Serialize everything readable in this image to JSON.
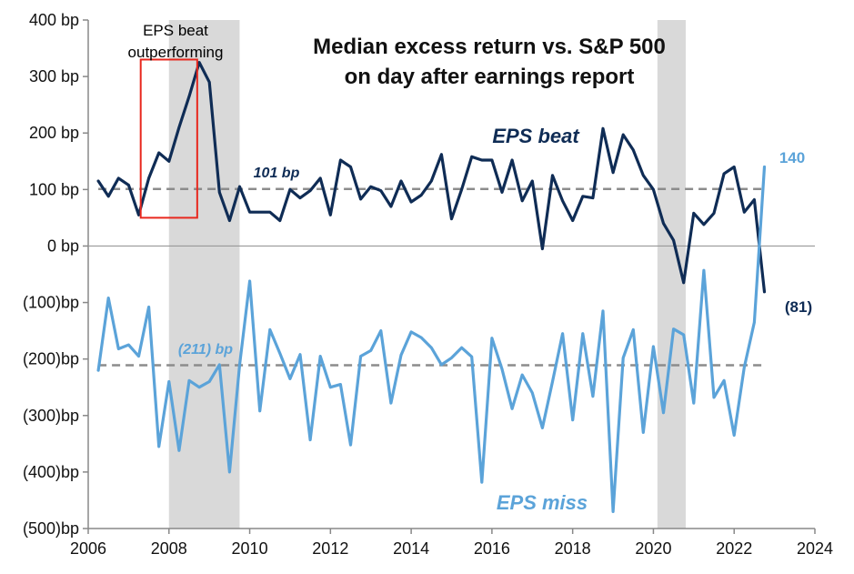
{
  "chart_data": {
    "type": "line",
    "title_line1": "Median excess return vs. S&P 500",
    "title_line2": "on day after earnings report",
    "xlabel": "",
    "ylabel": "",
    "xlim": [
      2006,
      2024
    ],
    "ylim": [
      -500,
      400
    ],
    "x_ticks": [
      2006,
      2008,
      2010,
      2012,
      2014,
      2016,
      2018,
      2020,
      2022,
      2024
    ],
    "x_tick_labels": [
      "2006",
      "2008",
      "2010",
      "2012",
      "2014",
      "2016",
      "2018",
      "2020",
      "2022",
      "2024"
    ],
    "y_ticks": [
      400,
      300,
      200,
      100,
      0,
      -100,
      -200,
      -300,
      -400,
      -500
    ],
    "y_tick_labels": [
      "400 bp",
      "300 bp",
      "200 bp",
      "100 bp",
      "0 bp",
      "(100)bp",
      "(200)bp",
      "(300)bp",
      "(400)bp",
      "(500)bp"
    ],
    "recessions": [
      [
        2008.0,
        2009.75
      ],
      [
        2020.1,
        2020.8
      ]
    ],
    "averages": [
      {
        "series": "EPS beat",
        "value": 101,
        "label": "101 bp",
        "color": "#0f2c55"
      },
      {
        "series": "EPS miss",
        "value": -211,
        "label": "(211) bp",
        "color": "#5ba3d9"
      }
    ],
    "highlight": {
      "label_line1": "EPS beat",
      "label_line2": "outperforming",
      "x_range": [
        2007.3,
        2008.7
      ],
      "y_range": [
        50,
        330
      ],
      "color": "#e8281e"
    },
    "series": [
      {
        "name": "EPS beat",
        "label": "EPS beat",
        "color": "#0f2c55",
        "end_label": "(81)",
        "x": [
          2006.25,
          2006.5,
          2006.75,
          2007.0,
          2007.25,
          2007.5,
          2007.75,
          2008.0,
          2008.25,
          2008.5,
          2008.75,
          2009.0,
          2009.25,
          2009.5,
          2009.75,
          2010.0,
          2010.25,
          2010.5,
          2010.75,
          2011.0,
          2011.25,
          2011.5,
          2011.75,
          2012.0,
          2012.25,
          2012.5,
          2012.75,
          2013.0,
          2013.25,
          2013.5,
          2013.75,
          2014.0,
          2014.25,
          2014.5,
          2014.75,
          2015.0,
          2015.25,
          2015.5,
          2015.75,
          2016.0,
          2016.25,
          2016.5,
          2016.75,
          2017.0,
          2017.25,
          2017.5,
          2017.75,
          2018.0,
          2018.25,
          2018.5,
          2018.75,
          2019.0,
          2019.25,
          2019.5,
          2019.75,
          2020.0,
          2020.25,
          2020.5,
          2020.75,
          2021.0,
          2021.25,
          2021.5,
          2021.75,
          2022.0,
          2022.25,
          2022.5,
          2022.75
        ],
        "values": [
          115,
          88,
          120,
          108,
          55,
          120,
          165,
          150,
          210,
          265,
          325,
          290,
          95,
          45,
          105,
          60,
          60,
          60,
          45,
          100,
          85,
          98,
          120,
          55,
          152,
          140,
          83,
          105,
          98,
          70,
          115,
          78,
          90,
          115,
          162,
          48,
          100,
          158,
          152,
          152,
          95,
          152,
          80,
          115,
          -5,
          125,
          80,
          45,
          88,
          85,
          208,
          130,
          197,
          170,
          125,
          100,
          40,
          10,
          -65,
          58,
          38,
          58,
          128,
          140,
          60,
          82,
          -81
        ]
      },
      {
        "name": "EPS miss",
        "label": "EPS miss",
        "color": "#5ba3d9",
        "end_label": "140",
        "x": [
          2006.25,
          2006.5,
          2006.75,
          2007.0,
          2007.25,
          2007.5,
          2007.75,
          2008.0,
          2008.25,
          2008.5,
          2008.75,
          2009.0,
          2009.25,
          2009.5,
          2009.75,
          2010.0,
          2010.25,
          2010.5,
          2010.75,
          2011.0,
          2011.25,
          2011.5,
          2011.75,
          2012.0,
          2012.25,
          2012.5,
          2012.75,
          2013.0,
          2013.25,
          2013.5,
          2013.75,
          2014.0,
          2014.25,
          2014.5,
          2014.75,
          2015.0,
          2015.25,
          2015.5,
          2015.75,
          2016.0,
          2016.25,
          2016.5,
          2016.75,
          2017.0,
          2017.25,
          2017.5,
          2017.75,
          2018.0,
          2018.25,
          2018.5,
          2018.75,
          2019.0,
          2019.25,
          2019.5,
          2019.75,
          2020.0,
          2020.25,
          2020.5,
          2020.75,
          2021.0,
          2021.25,
          2021.5,
          2021.75,
          2022.0,
          2022.25,
          2022.5,
          2022.75
        ],
        "values": [
          -220,
          -92,
          -182,
          -175,
          -195,
          -108,
          -355,
          -240,
          -362,
          -238,
          -250,
          -240,
          -210,
          -400,
          -210,
          -62,
          -292,
          -148,
          -190,
          -235,
          -192,
          -343,
          -195,
          -250,
          -245,
          -352,
          -195,
          -185,
          -150,
          -278,
          -193,
          -152,
          -162,
          -180,
          -210,
          -198,
          -180,
          -196,
          -418,
          -163,
          -218,
          -288,
          -228,
          -260,
          -322,
          -240,
          -155,
          -308,
          -155,
          -266,
          -115,
          -470,
          -198,
          -148,
          -330,
          -178,
          -295,
          -147,
          -157,
          -278,
          -43,
          -268,
          -238,
          -335,
          -215,
          -135,
          140
        ]
      }
    ]
  }
}
